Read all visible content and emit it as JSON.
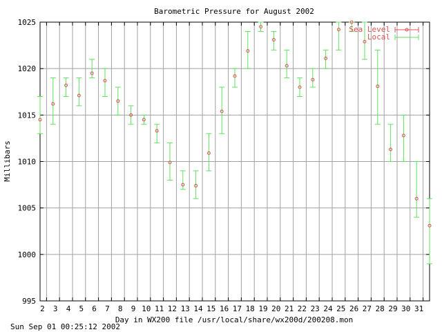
{
  "chart_data": {
    "type": "scatter",
    "title": "Barometric Pressure for August 2002",
    "xlabel": "Day in WX200 file /usr/local/share/wx200d/200208.mon",
    "ylabel": "Millibars",
    "footer": "Sun Sep 01 00:25:12 2002",
    "xlim": [
      1.5,
      31.5
    ],
    "ylim": [
      995,
      1025
    ],
    "x_ticks": [
      2,
      3,
      4,
      5,
      6,
      7,
      8,
      9,
      10,
      11,
      12,
      13,
      14,
      15,
      16,
      17,
      18,
      19,
      20,
      21,
      22,
      23,
      24,
      25,
      26,
      27,
      28,
      29,
      30,
      31
    ],
    "y_ticks": [
      995,
      1000,
      1005,
      1010,
      1015,
      1020,
      1025
    ],
    "grid": true,
    "legend_position": "top-right",
    "legend": [
      "Sea Level",
      "Local"
    ],
    "colors": {
      "sea_level": "#e05050",
      "local": "#5ee05e",
      "grid": "#a0a0a0"
    },
    "series": [
      {
        "name": "Sea Level",
        "x": [
          1.5,
          2.5,
          3.5,
          4.5,
          5.5,
          6.5,
          7.5,
          8.5,
          9.5,
          10.5,
          11.5,
          12.5,
          13.5,
          14.5,
          15.5,
          16.5,
          17.5,
          18.5,
          19.5,
          20.5,
          21.5,
          22.5,
          23.5,
          24.5,
          25.5,
          26.5,
          27.5,
          28.5,
          29.5,
          30.5,
          31.5
        ],
        "y": [
          1014.5,
          1016.2,
          1018.2,
          1017.1,
          1019.5,
          1018.7,
          1016.5,
          1015.0,
          1014.5,
          1013.3,
          1009.9,
          1007.5,
          1007.4,
          1010.9,
          1015.4,
          1019.2,
          1021.9,
          1024.5,
          1023.1,
          1020.3,
          1018.0,
          1018.8,
          1021.1,
          1024.2,
          1025.0,
          1022.9,
          1018.1,
          1011.3,
          1012.8,
          1006.0,
          1003.1
        ]
      },
      {
        "name": "Local",
        "x": [
          1.5,
          2.5,
          3.5,
          4.5,
          5.5,
          6.5,
          7.5,
          8.5,
          9.5,
          10.5,
          11.5,
          12.5,
          13.5,
          14.5,
          15.5,
          16.5,
          17.5,
          18.5,
          19.5,
          20.5,
          21.5,
          22.5,
          23.5,
          24.5,
          25.5,
          26.5,
          27.5,
          28.5,
          29.5,
          30.5,
          31.5
        ],
        "low": [
          1013,
          1014,
          1017,
          1016,
          1019,
          1017,
          1015,
          1014,
          1014,
          1012,
          1008,
          1007,
          1006,
          1009,
          1013,
          1018,
          1020,
          1024,
          1022,
          1019,
          1017,
          1018,
          1020,
          1022,
          1024,
          1021,
          1014,
          1010,
          1010,
          1004,
          999
        ],
        "high": [
          1017,
          1019,
          1019,
          1019,
          1021,
          1020,
          1018,
          1016,
          1015,
          1014,
          1012,
          1009,
          1009,
          1013,
          1018,
          1020,
          1024,
          1025,
          1024,
          1022,
          1019,
          1020,
          1022,
          1025,
          1025,
          1025,
          1022,
          1014,
          1015,
          1010,
          1006
        ]
      }
    ]
  }
}
